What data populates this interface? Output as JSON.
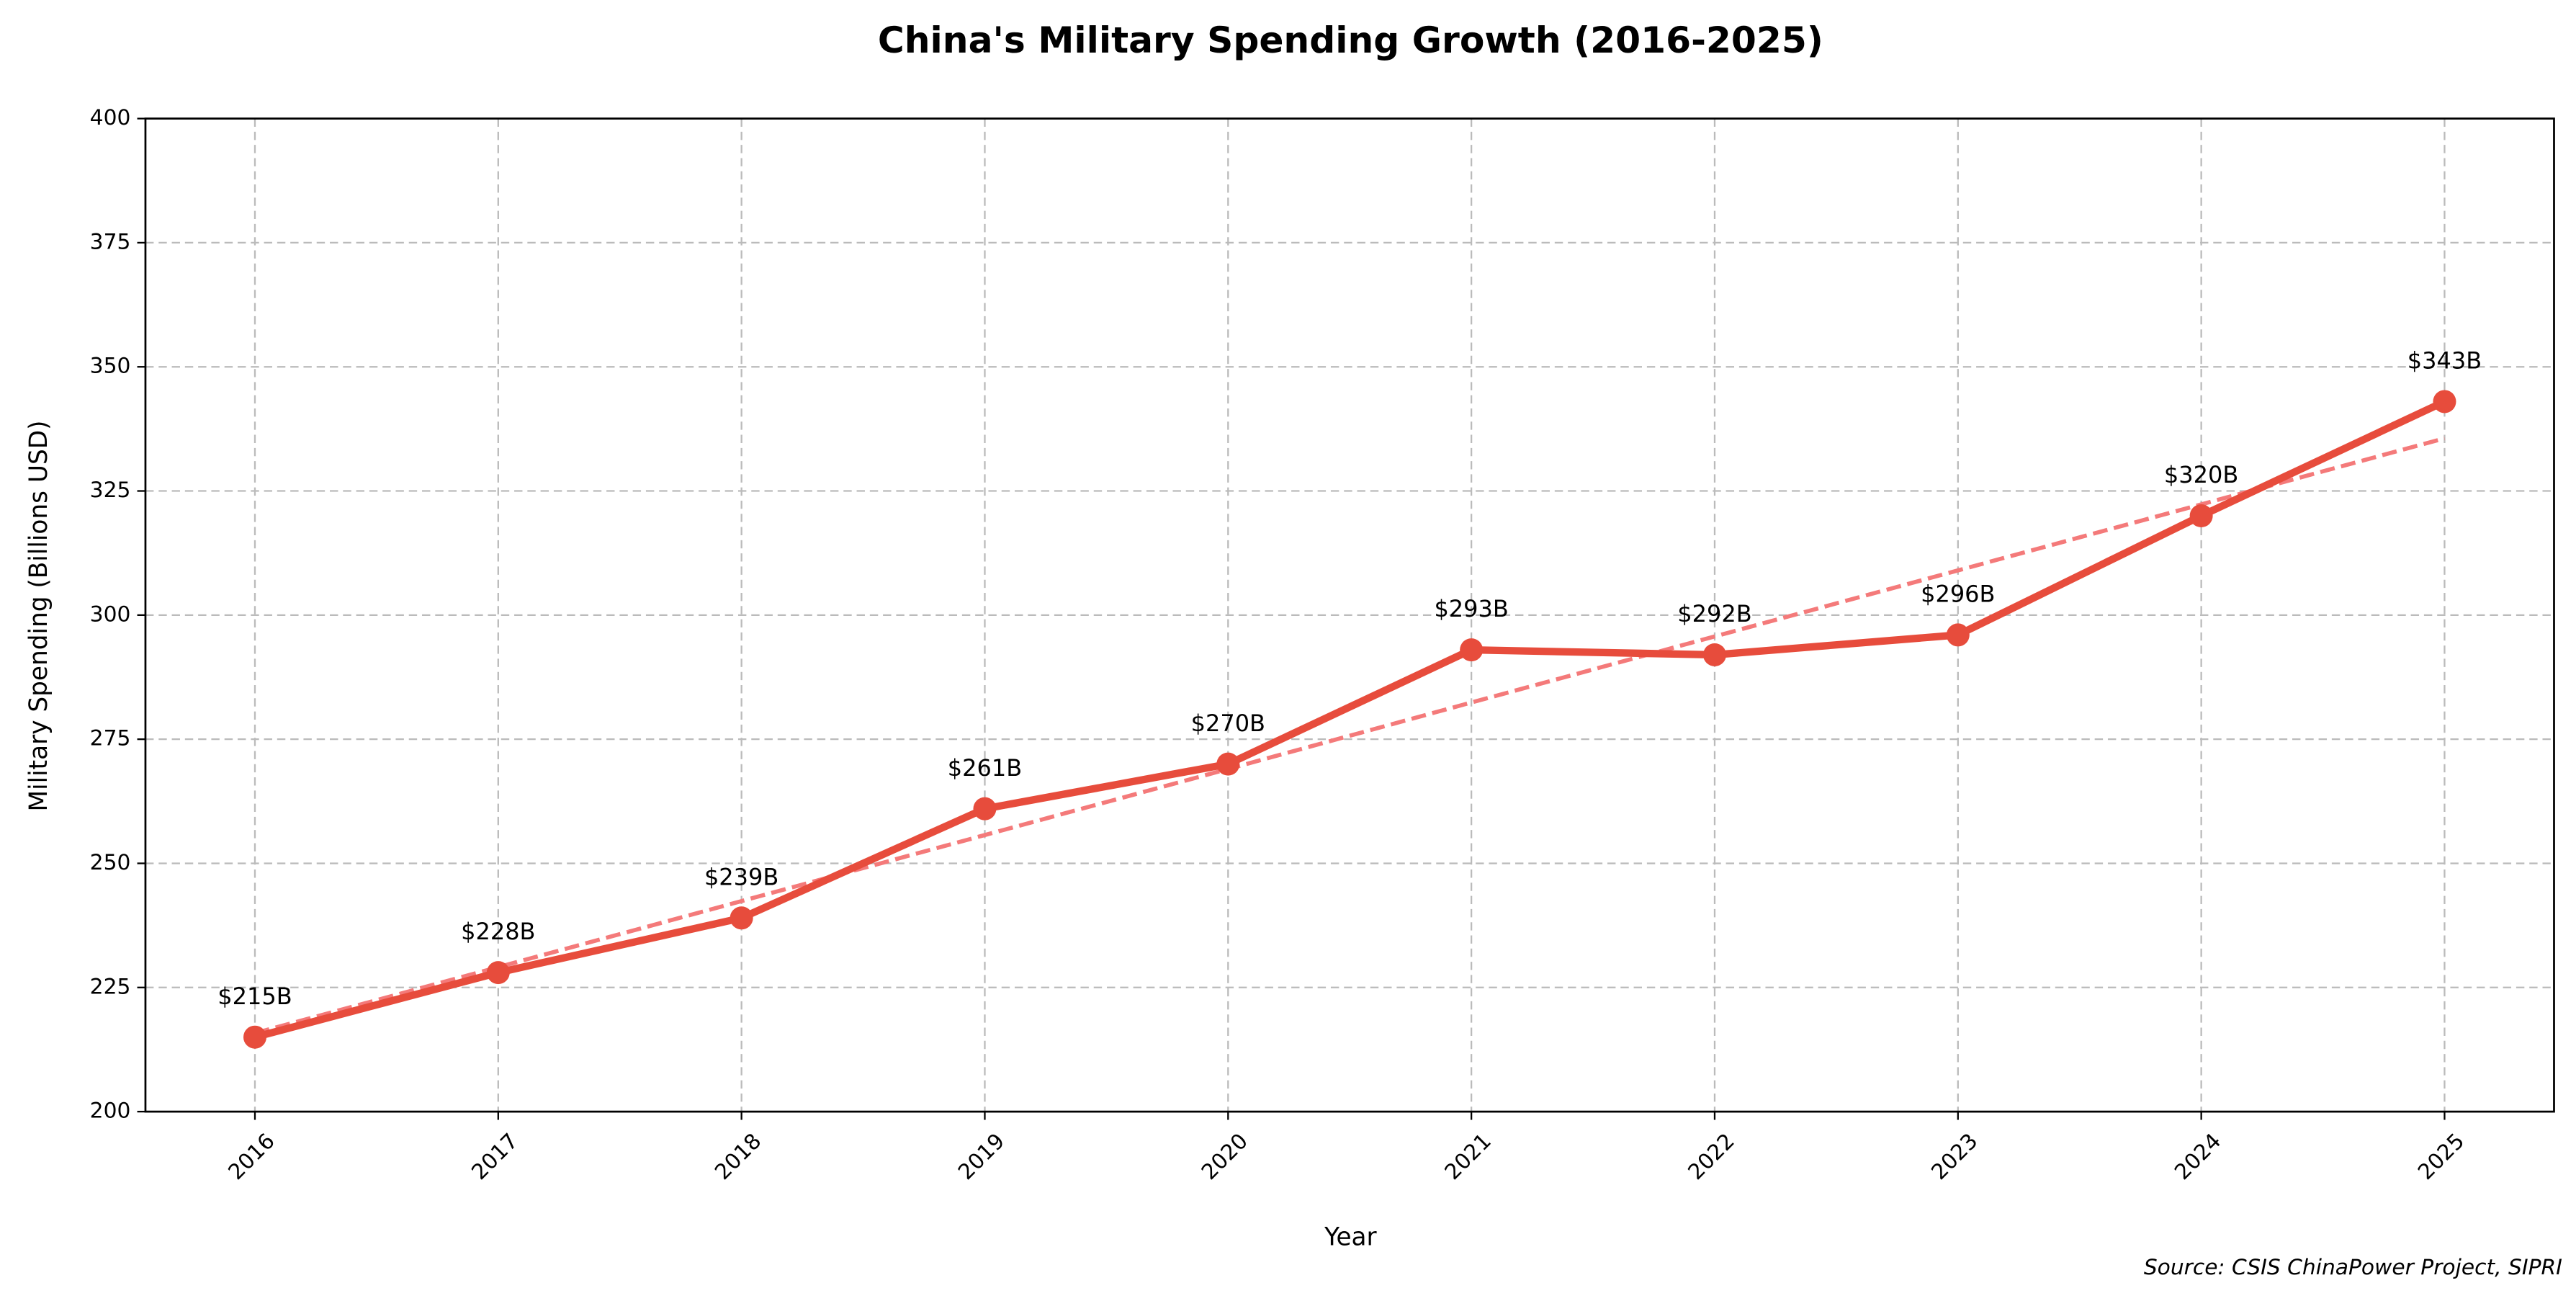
{
  "chart_data": {
    "type": "line",
    "title": "China's Military Spending Growth (2016-2025)",
    "x_label": "Year",
    "y_label": "Military Spending (Billions USD)",
    "source": "Source: CSIS ChinaPower Project, SIPRI",
    "x": [
      2016,
      2017,
      2018,
      2019,
      2020,
      2021,
      2022,
      2023,
      2024,
      2025
    ],
    "series": [
      {
        "color": "#e74c3c",
        "values": [
          215,
          228,
          239,
          261,
          270,
          293,
          292,
          296,
          320,
          343
        ],
        "value_labels": [
          "$215B",
          "$228B",
          "$239B",
          "$261B",
          "$270B",
          "$293B",
          "$292B",
          "$296B",
          "$320B",
          "$343B"
        ]
      }
    ],
    "trend": {
      "color": "#f47a7a",
      "values": [
        215.8,
        229.1,
        242.4,
        255.7,
        269.0,
        282.4,
        295.7,
        309.0,
        322.3,
        335.6
      ]
    },
    "xlim": [
      2015.55,
      2025.45
    ],
    "xticks": [
      2016,
      2017,
      2018,
      2019,
      2020,
      2021,
      2022,
      2023,
      2024,
      2025
    ],
    "ylim": [
      200,
      400
    ],
    "yticks": [
      200,
      225,
      250,
      275,
      300,
      325,
      350,
      375,
      400
    ],
    "grid": true
  }
}
